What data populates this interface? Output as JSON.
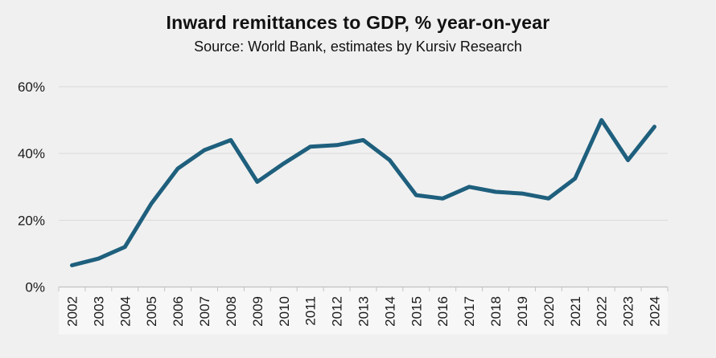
{
  "header": {
    "title": "Inward remittances to GDP, % year-on-year",
    "subtitle": "Source: World Bank, estimates by Kursiv Research"
  },
  "chart_data": {
    "type": "line",
    "title": "Inward remittances to GDP, % year-on-year",
    "subtitle": "Source: World Bank, estimates by Kursiv Research",
    "x": [
      "2002",
      "2003",
      "2004",
      "2005",
      "2006",
      "2007",
      "2008",
      "2009",
      "2010",
      "2011",
      "2012",
      "2013",
      "2014",
      "2015",
      "2016",
      "2017",
      "2018",
      "2019",
      "2020",
      "2021",
      "2022",
      "2023",
      "2024"
    ],
    "values": [
      6.5,
      8.5,
      12,
      25,
      35.5,
      41,
      44,
      31.5,
      37,
      42,
      42.5,
      44,
      38,
      27.5,
      26.5,
      30,
      28.5,
      28,
      26.5,
      32.5,
      50,
      38,
      48
    ],
    "yticks": [
      0,
      20,
      40,
      60
    ],
    "ytick_suffix": "%",
    "ylim": [
      0,
      65
    ],
    "grid": "horizontal",
    "legend_position": "none",
    "colors": {
      "line": "#1e5f7d",
      "background": "#f0f0f0",
      "gridline": "#d9d9d9",
      "axis": "#c3c3c3",
      "tick_label_band": "#f7f7f7",
      "text": "#1a1a1a"
    }
  }
}
